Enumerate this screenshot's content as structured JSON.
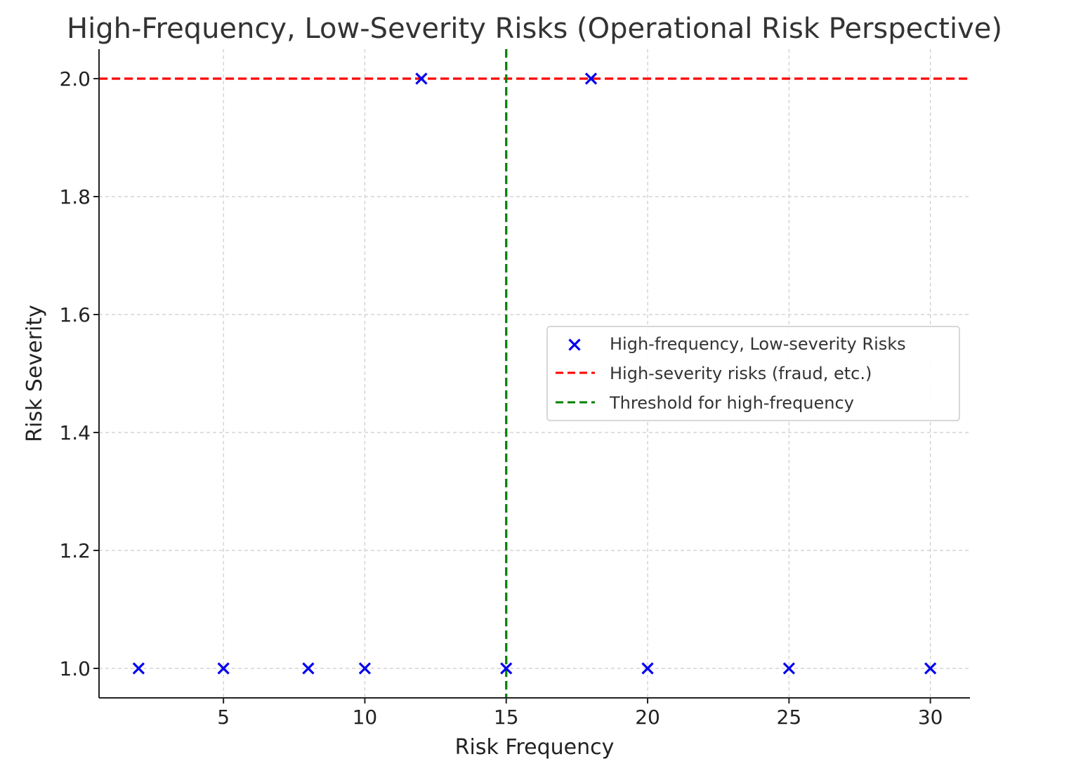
{
  "chart_data": {
    "type": "scatter",
    "title": "High-Frequency, Low-Severity Risks (Operational Risk Perspective)",
    "xlabel": "Risk Frequency",
    "ylabel": "Risk Severity",
    "xlim": [
      0.6,
      31.4
    ],
    "ylim": [
      0.95,
      2.05
    ],
    "xticks": [
      5,
      10,
      15,
      20,
      25,
      30
    ],
    "yticks": [
      1.0,
      1.2,
      1.4,
      1.6,
      1.8,
      2.0
    ],
    "grid": true,
    "legend_position": "center-right",
    "series": [
      {
        "name": "High-frequency, Low-severity Risks",
        "kind": "scatter",
        "marker": "x",
        "color": "#0000ee",
        "points": [
          {
            "x": 2,
            "y": 1
          },
          {
            "x": 5,
            "y": 1
          },
          {
            "x": 8,
            "y": 1
          },
          {
            "x": 10,
            "y": 1
          },
          {
            "x": 12,
            "y": 2
          },
          {
            "x": 15,
            "y": 1
          },
          {
            "x": 18,
            "y": 2
          },
          {
            "x": 20,
            "y": 1
          },
          {
            "x": 25,
            "y": 1
          },
          {
            "x": 30,
            "y": 1
          }
        ]
      }
    ],
    "reference_lines": [
      {
        "name": "High-severity risks (fraud, etc.)",
        "orientation": "horizontal",
        "value": 2.0,
        "color": "#ff0000",
        "style": "dashed"
      },
      {
        "name": "Threshold for high-frequency",
        "orientation": "vertical",
        "value": 15,
        "color": "#008000",
        "style": "dashed"
      }
    ]
  }
}
